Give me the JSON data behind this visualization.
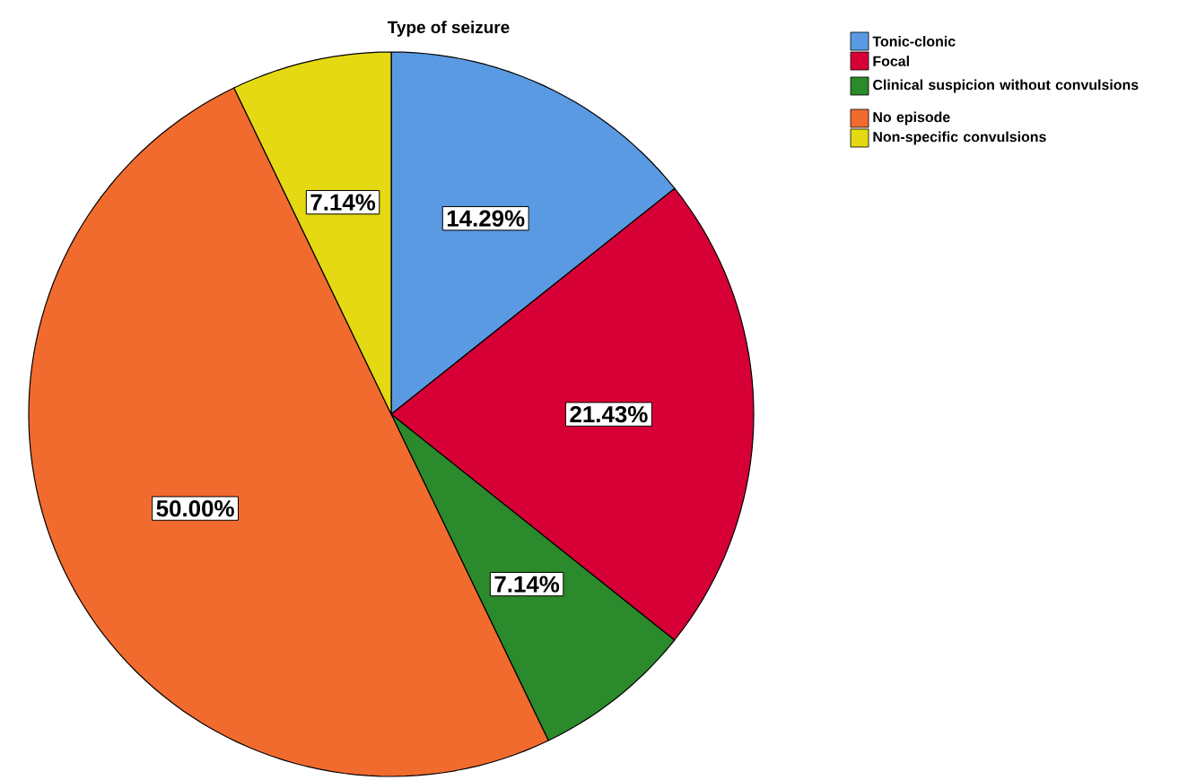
{
  "chart_data": {
    "type": "pie",
    "title": "Type of seizure",
    "categories": [
      "Tonic-clonic",
      "Focal",
      "Clinical suspicion without convulsions",
      "No episode",
      "Non-specific convulsions"
    ],
    "values": [
      14.29,
      21.43,
      7.14,
      50.0,
      7.14
    ],
    "colors": [
      "#5a9ae2",
      "#d70036",
      "#2b8a2b",
      "#f26b2e",
      "#e4d912"
    ],
    "value_labels": [
      "14.29%",
      "21.43%",
      "7.14%",
      "50.00%",
      "7.14%"
    ],
    "legend": "top right"
  }
}
